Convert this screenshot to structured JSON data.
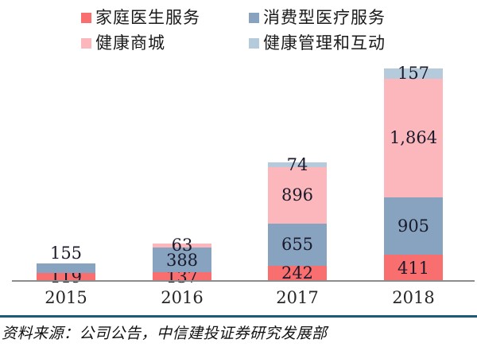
{
  "chart_data": {
    "type": "bar",
    "stacked": true,
    "title": "",
    "xlabel": "",
    "ylabel": "",
    "grid": false,
    "legend_position": "top",
    "categories": [
      "2015",
      "2016",
      "2017",
      "2018"
    ],
    "series": [
      {
        "name": "家庭医生服务",
        "color": "#F96E6E",
        "values": [
          119,
          137,
          242,
          411
        ]
      },
      {
        "name": "消费型医疗服务",
        "color": "#87A3BF",
        "values": [
          155,
          388,
          655,
          905
        ]
      },
      {
        "name": "健康商城",
        "color": "#FBB7BB",
        "values": [
          0,
          63,
          896,
          1864
        ]
      },
      {
        "name": "健康管理和互动",
        "color": "#B5CBDC",
        "values": [
          0,
          0,
          74,
          157
        ]
      }
    ],
    "totals": [
      274,
      588,
      1867,
      3337
    ],
    "value_labels_shown": [
      "119",
      "155",
      "137",
      "388",
      "63",
      "242",
      "655",
      "896",
      "74",
      "411",
      "905",
      "1,864",
      "157"
    ],
    "outside_labels": [
      [
        0,
        1
      ]
    ],
    "axis_line_color": "#8C8C8C",
    "value_label_color": "#1A1A2B"
  },
  "source": {
    "text": "资料来源：公司公告，中信建投证券研究发展部"
  },
  "divider_color": "#1D5A78"
}
